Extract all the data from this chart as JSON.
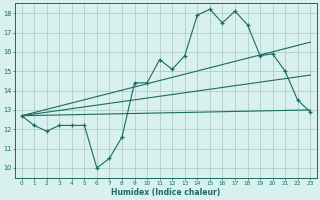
{
  "title": "",
  "xlabel": "Humidex (Indice chaleur)",
  "bg_color": "#d8f0ee",
  "grid_color": "#b0ceca",
  "line_color": "#1a6b60",
  "xlim": [
    -0.5,
    23.5
  ],
  "ylim": [
    9.5,
    18.5
  ],
  "yticks": [
    10,
    11,
    12,
    13,
    14,
    15,
    16,
    17,
    18
  ],
  "xticks": [
    0,
    1,
    2,
    3,
    4,
    5,
    6,
    7,
    8,
    9,
    10,
    11,
    12,
    13,
    14,
    15,
    16,
    17,
    18,
    19,
    20,
    21,
    22,
    23
  ],
  "line1_x": [
    0,
    1,
    2,
    3,
    4,
    5,
    6,
    7,
    8,
    9,
    10,
    11,
    12,
    13,
    14,
    15,
    16,
    17,
    18,
    19,
    20,
    21,
    22,
    23
  ],
  "line1_y": [
    12.7,
    12.2,
    11.9,
    12.2,
    12.2,
    12.2,
    10.0,
    10.5,
    11.6,
    14.4,
    14.4,
    15.6,
    15.1,
    15.8,
    17.9,
    18.2,
    17.5,
    18.1,
    17.4,
    15.8,
    15.9,
    15.0,
    13.5,
    12.9
  ],
  "line2_x": [
    0,
    23
  ],
  "line2_y": [
    12.7,
    16.5
  ],
  "line3_x": [
    0,
    23
  ],
  "line3_y": [
    12.7,
    14.8
  ],
  "line4_x": [
    0,
    23
  ],
  "line4_y": [
    12.7,
    13.0
  ]
}
